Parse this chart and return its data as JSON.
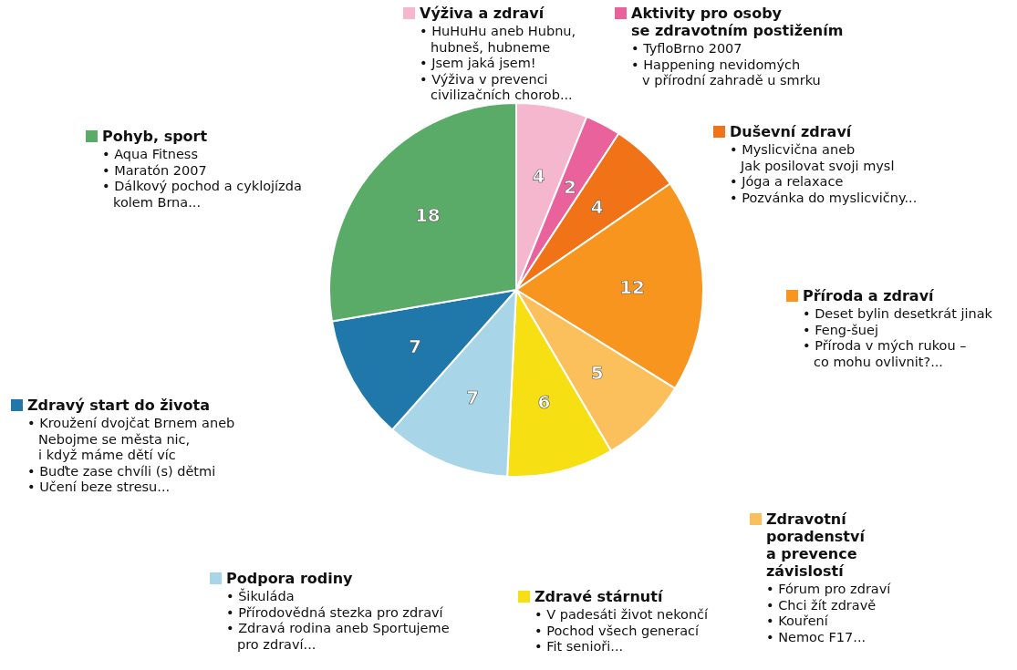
{
  "chart_data": {
    "type": "pie",
    "categories": [
      "Výživa a zdraví",
      "Aktivity pro osoby\nse zdravotním postižením",
      "Duševní zdraví",
      "Příroda a zdraví",
      "Zdravotní\nporadenství\na prevence\nzávislostí",
      "Zdravé stárnutí",
      "Podpora rodiny",
      "Zdravý start do života",
      "Pohyb, sport"
    ],
    "values": [
      4,
      2,
      4,
      12,
      5,
      6,
      7,
      7,
      18
    ],
    "colors": [
      "#f5b7cd",
      "#e9629b",
      "#f07318",
      "#f7951f",
      "#fbc05c",
      "#f6df12",
      "#a9d5e8",
      "#1f78a9",
      "#5aaa68"
    ],
    "data_labels": true,
    "legend": "bottom left",
    "annotations": [
      "• HuHuHu aneb Hubnu,\nhubneš, hubneme\n• Jsem jaká jsem!\n• Výživa v prevenci\ncivilizačních chorob...",
      "• TyfloBrno 2007\n• Happening nevidomých\nv přírodní zahradě u smrku",
      "• Myslicvična aneb\nJak posilovat svoji mysl\n• Jóga a relaxace\n• Pozvánka do myslicvičny...",
      "• Deset bylin desetkrát jinak\n• Feng-šuej\n• Příroda v mých rukou –\nco mohu ovlivnit?...",
      "• Fórum pro zdraví\n• Chci žít zdravě\n• Kouření\n• Nemoc F17...",
      "• V padesáti život nekončí\n• Pochod všech generací\n• Fit senioři...",
      "• Šikuláda\n• Přírodovědná stezka pro zdraví\n• Zdravá rodina aneb Sportujeme\npro zdraví...",
      "• Kroužení dvojčat Brnem aneb\nNebojme se města nic,\ni když máme dětí víc\n• Buďte zase chvíli (s) dětmi\n• Učení beze stresu...",
      "• Aqua Fitness\n• Maratón 2007\n• Dálkový pochod a cyklojízda\nkolem Brna..."
    ]
  }
}
